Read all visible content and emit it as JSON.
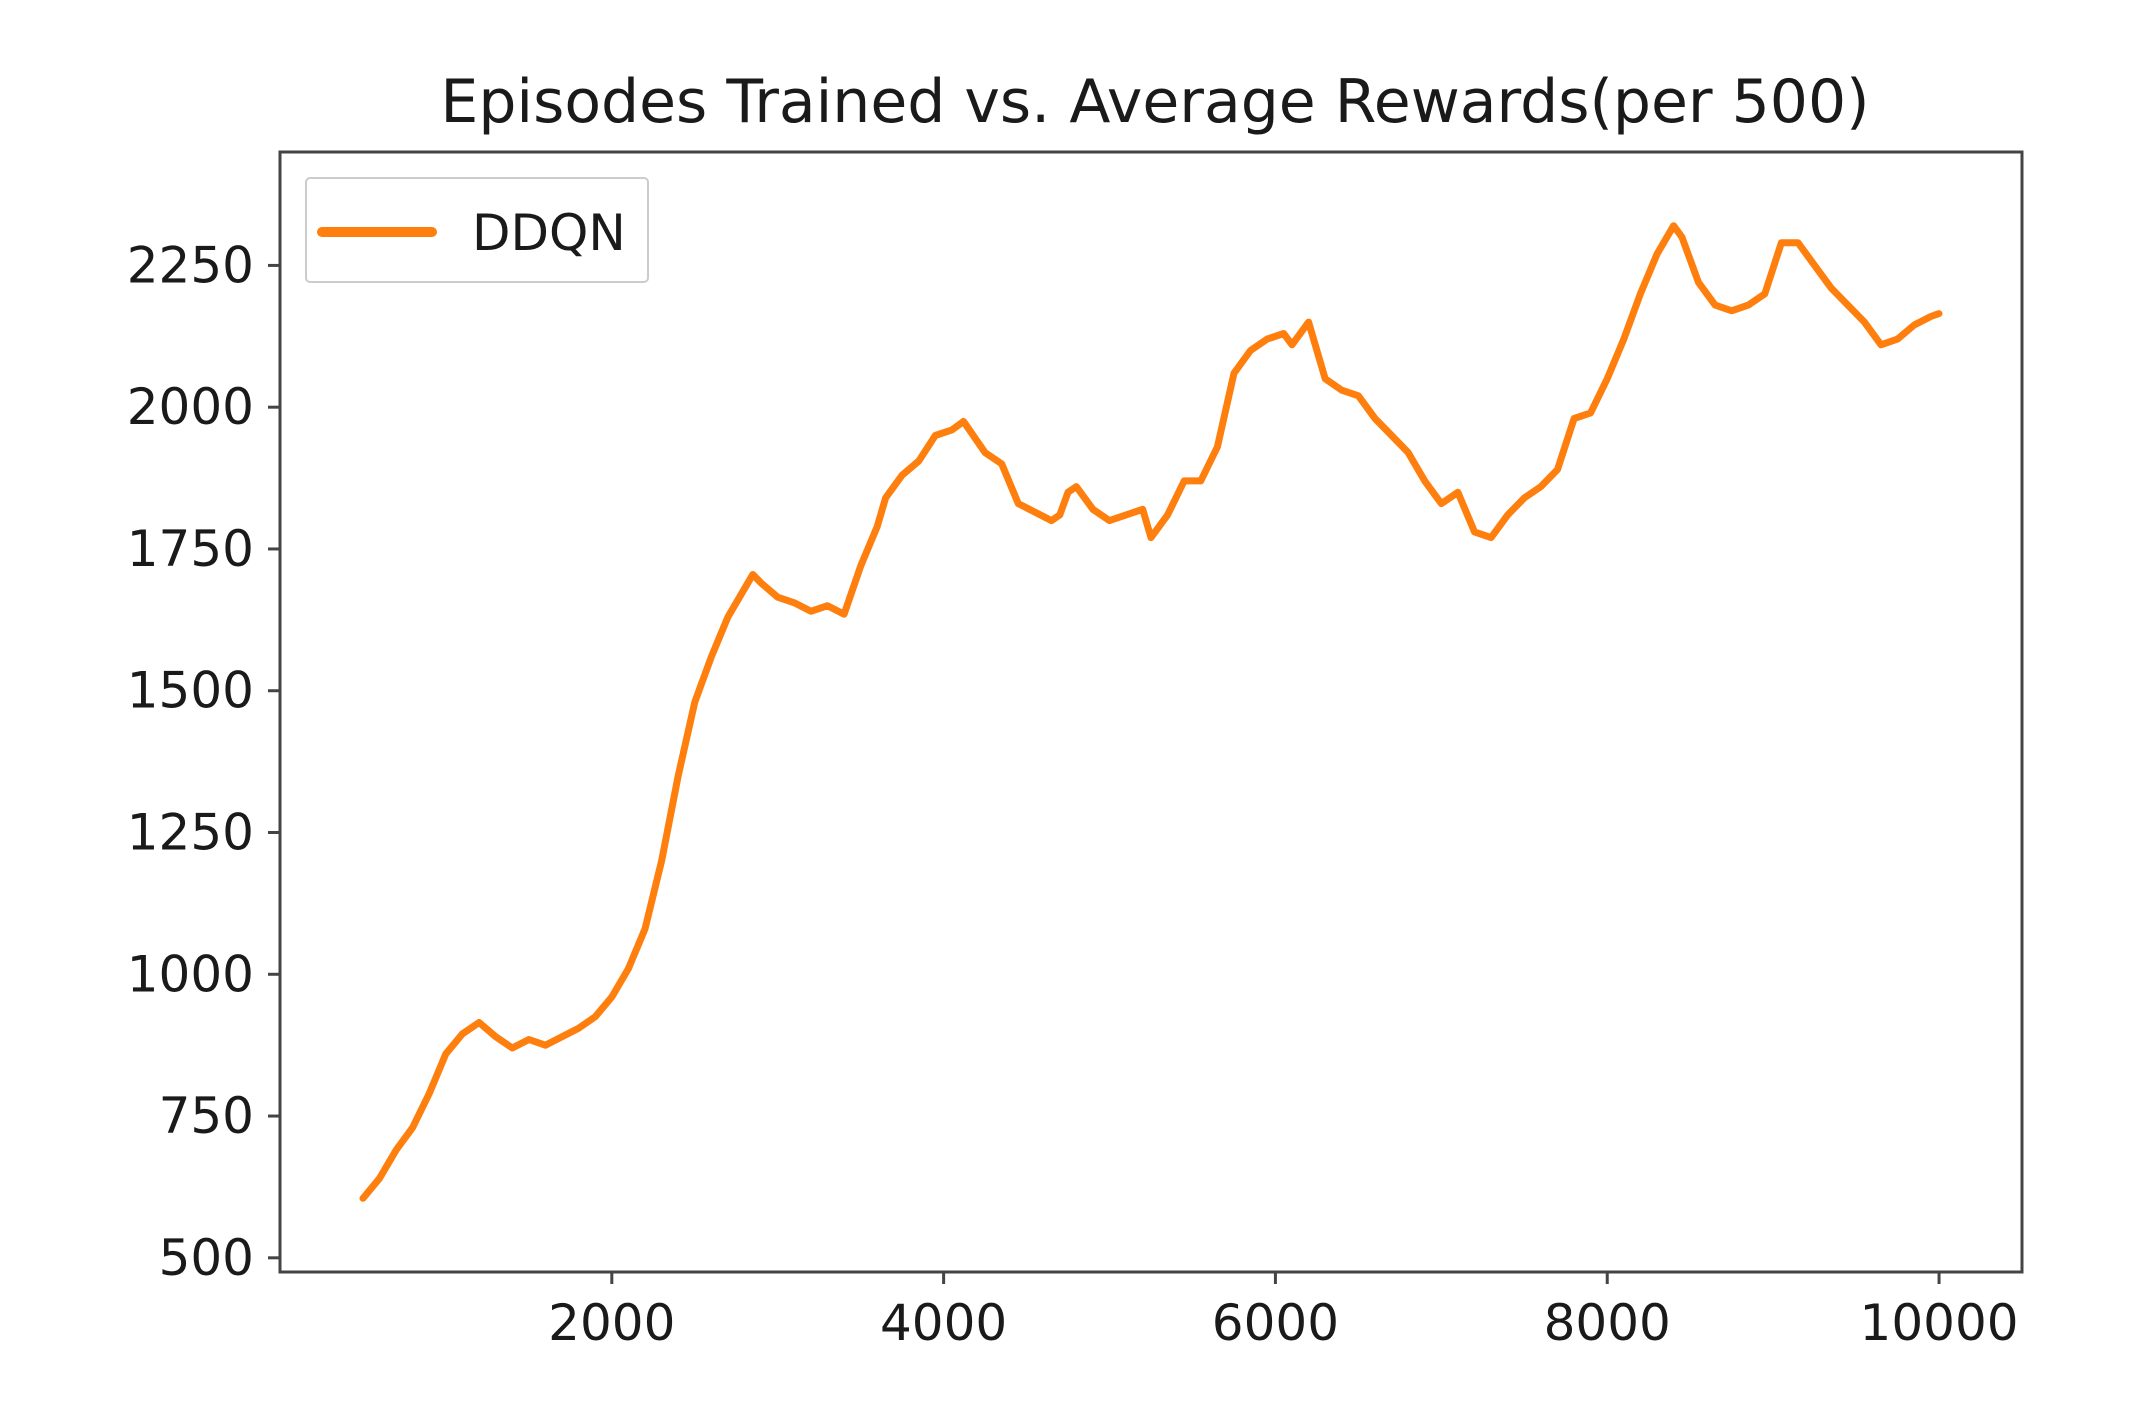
{
  "chart_data": {
    "type": "line",
    "title": "Episodes Trained vs. Average Rewards(per 500)",
    "xlabel": "",
    "ylabel": "",
    "xlim": [
      0,
      10500
    ],
    "ylim": [
      475,
      2450
    ],
    "x_ticks": [
      2000,
      4000,
      6000,
      8000,
      10000
    ],
    "y_ticks": [
      500,
      750,
      1000,
      1250,
      1500,
      1750,
      2000,
      2250
    ],
    "grid": false,
    "legend_position": "top-left",
    "series": [
      {
        "name": "DDQN",
        "color": "#ff7f0e",
        "points": [
          [
            500,
            605
          ],
          [
            600,
            640
          ],
          [
            700,
            690
          ],
          [
            800,
            730
          ],
          [
            900,
            790
          ],
          [
            1000,
            860
          ],
          [
            1100,
            895
          ],
          [
            1200,
            915
          ],
          [
            1300,
            890
          ],
          [
            1400,
            870
          ],
          [
            1500,
            885
          ],
          [
            1600,
            875
          ],
          [
            1700,
            890
          ],
          [
            1800,
            905
          ],
          [
            1900,
            925
          ],
          [
            2000,
            960
          ],
          [
            2100,
            1010
          ],
          [
            2200,
            1080
          ],
          [
            2300,
            1200
          ],
          [
            2400,
            1350
          ],
          [
            2500,
            1480
          ],
          [
            2600,
            1560
          ],
          [
            2700,
            1630
          ],
          [
            2800,
            1680
          ],
          [
            2850,
            1705
          ],
          [
            2900,
            1690
          ],
          [
            3000,
            1665
          ],
          [
            3100,
            1655
          ],
          [
            3200,
            1640
          ],
          [
            3300,
            1650
          ],
          [
            3400,
            1635
          ],
          [
            3500,
            1720
          ],
          [
            3600,
            1790
          ],
          [
            3650,
            1840
          ],
          [
            3750,
            1880
          ],
          [
            3850,
            1905
          ],
          [
            3950,
            1950
          ],
          [
            4050,
            1960
          ],
          [
            4120,
            1975
          ],
          [
            4250,
            1920
          ],
          [
            4350,
            1900
          ],
          [
            4450,
            1830
          ],
          [
            4550,
            1815
          ],
          [
            4650,
            1800
          ],
          [
            4700,
            1810
          ],
          [
            4750,
            1850
          ],
          [
            4800,
            1860
          ],
          [
            4900,
            1820
          ],
          [
            5000,
            1800
          ],
          [
            5100,
            1810
          ],
          [
            5200,
            1820
          ],
          [
            5250,
            1770
          ],
          [
            5350,
            1810
          ],
          [
            5450,
            1870
          ],
          [
            5550,
            1870
          ],
          [
            5650,
            1930
          ],
          [
            5750,
            2060
          ],
          [
            5850,
            2100
          ],
          [
            5950,
            2120
          ],
          [
            6050,
            2130
          ],
          [
            6100,
            2110
          ],
          [
            6200,
            2150
          ],
          [
            6300,
            2050
          ],
          [
            6400,
            2030
          ],
          [
            6500,
            2020
          ],
          [
            6600,
            1980
          ],
          [
            6700,
            1950
          ],
          [
            6800,
            1920
          ],
          [
            6900,
            1870
          ],
          [
            7000,
            1830
          ],
          [
            7100,
            1850
          ],
          [
            7200,
            1780
          ],
          [
            7300,
            1770
          ],
          [
            7400,
            1810
          ],
          [
            7500,
            1840
          ],
          [
            7600,
            1860
          ],
          [
            7700,
            1890
          ],
          [
            7800,
            1980
          ],
          [
            7900,
            1990
          ],
          [
            8000,
            2050
          ],
          [
            8100,
            2120
          ],
          [
            8200,
            2200
          ],
          [
            8300,
            2270
          ],
          [
            8400,
            2320
          ],
          [
            8450,
            2300
          ],
          [
            8550,
            2220
          ],
          [
            8650,
            2180
          ],
          [
            8750,
            2170
          ],
          [
            8850,
            2180
          ],
          [
            8950,
            2200
          ],
          [
            9050,
            2290
          ],
          [
            9150,
            2290
          ],
          [
            9250,
            2250
          ],
          [
            9350,
            2210
          ],
          [
            9450,
            2180
          ],
          [
            9550,
            2150
          ],
          [
            9650,
            2110
          ],
          [
            9750,
            2120
          ],
          [
            9850,
            2145
          ],
          [
            9950,
            2160
          ],
          [
            10000,
            2165
          ]
        ]
      }
    ]
  }
}
